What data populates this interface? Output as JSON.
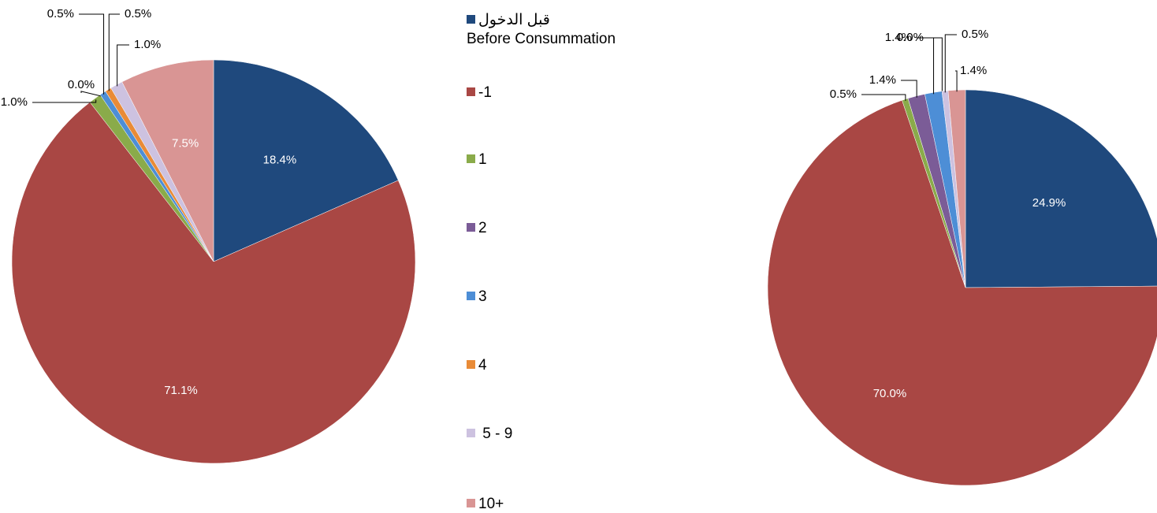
{
  "chart_data": [
    {
      "type": "pie",
      "categories": [
        "قبل الدخول\nBefore Consummation",
        "-1",
        "1",
        "2",
        "3",
        "4",
        " 5 - 9",
        "10+"
      ],
      "colors": [
        "#1f497d",
        "#a94744",
        "#8aab4a",
        "#7b5c97",
        "#4d8ed6",
        "#e98b37",
        "#cdc2e0",
        "#d99594"
      ],
      "values": [
        18.4,
        71.1,
        1.0,
        0.0,
        0.5,
        0.5,
        1.0,
        7.5
      ],
      "value_labels": [
        "18.4%",
        "71.1%",
        "1.0%",
        "0.0%",
        "0.5%",
        "0.5%",
        "1.0%",
        "7.5%"
      ]
    },
    {
      "type": "pie",
      "values": [
        24.9,
        70.0,
        0.5,
        1.4,
        1.4,
        0.0,
        0.5,
        1.4
      ],
      "value_labels": [
        "24.9%",
        "70.0%",
        "0.5%",
        "1.4%",
        "1.4%",
        "0.0%",
        "0.5%",
        "1.4%"
      ]
    }
  ]
}
